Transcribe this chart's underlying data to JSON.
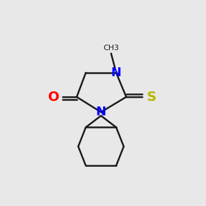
{
  "bg_color": "#e8e8e8",
  "bond_color": "#1a1a1a",
  "N_color": "#0000ff",
  "O_color": "#ff0000",
  "S_color": "#b8b800",
  "line_width": 1.8,
  "figsize": [
    3.0,
    3.0
  ],
  "dpi": 100,
  "O_label": "O",
  "S_label": "S",
  "N_label": "N",
  "methyl_label": "CH3"
}
